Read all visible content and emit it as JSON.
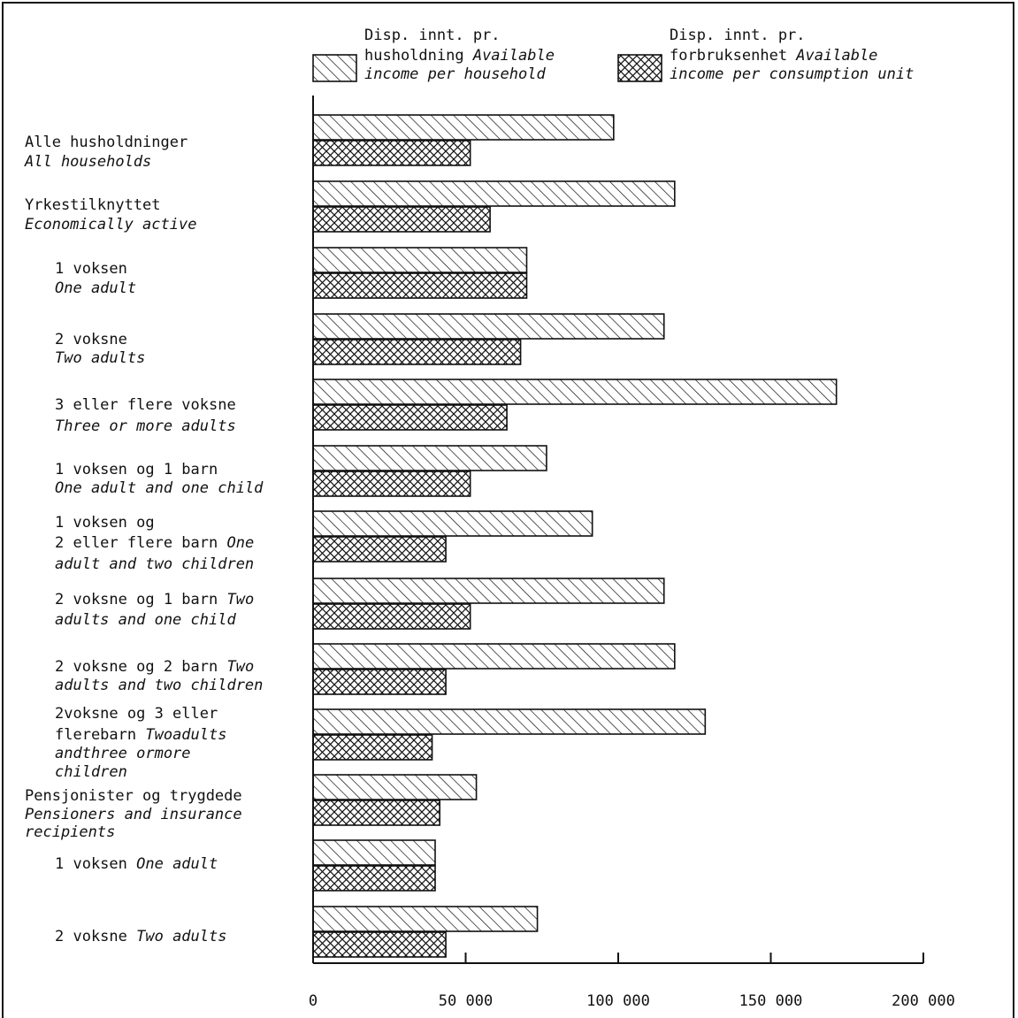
{
  "chart_data": {
    "type": "bar",
    "orientation": "horizontal",
    "categories": [
      {
        "no": "Alle husholdninger",
        "en": "All households"
      },
      {
        "no": "Yrkestilknyttet",
        "en": "Economically active"
      },
      {
        "no": "1 voksen",
        "en": "One adult"
      },
      {
        "no": "2 voksne",
        "en": "Two adults"
      },
      {
        "no": "3 eller flere voksne",
        "en": "Three or more adults"
      },
      {
        "no": "1 voksen og 1 barn",
        "en": "One adult and one child"
      },
      {
        "no": "1 voksen og 2 eller flere barn",
        "en": "One adult and two children"
      },
      {
        "no": "2 voksne og 1 barn",
        "en": "Two adults and one child"
      },
      {
        "no": "2 voksne og 2 barn",
        "en": "Two adults and two children"
      },
      {
        "no": "2voksne og 3 eller flerebarn",
        "en": "Twoadults andthree ormore children"
      },
      {
        "no": "Pensjonister og trygdede",
        "en": "Pensioners and insurance recipients"
      },
      {
        "no": "1 voksen",
        "en": "One adult"
      },
      {
        "no": "2 voksne",
        "en": "Two adults"
      }
    ],
    "series": [
      {
        "name_no": "Disp. innt. pr. husholdning",
        "name_en": "Available income per household",
        "pattern": "diagonal-hatch",
        "values": [
          98500,
          118500,
          70000,
          115000,
          171500,
          76500,
          91500,
          115000,
          118500,
          128500,
          53500,
          40000,
          73500
        ]
      },
      {
        "name_no": "Disp. innt. pr. forbruksenhet",
        "name_en": "Available income per consumption unit",
        "pattern": "cross-hatch",
        "values": [
          51500,
          58000,
          70000,
          68000,
          63500,
          51500,
          43500,
          51500,
          43500,
          39000,
          41500,
          40000,
          43500
        ]
      }
    ],
    "xlim": [
      0,
      200000
    ],
    "xticks": [
      "0",
      "50 000",
      "100 000",
      "150 000",
      "200 000"
    ],
    "title": "",
    "xlabel": "",
    "ylabel": "",
    "legend_position": "top",
    "grid": false
  }
}
